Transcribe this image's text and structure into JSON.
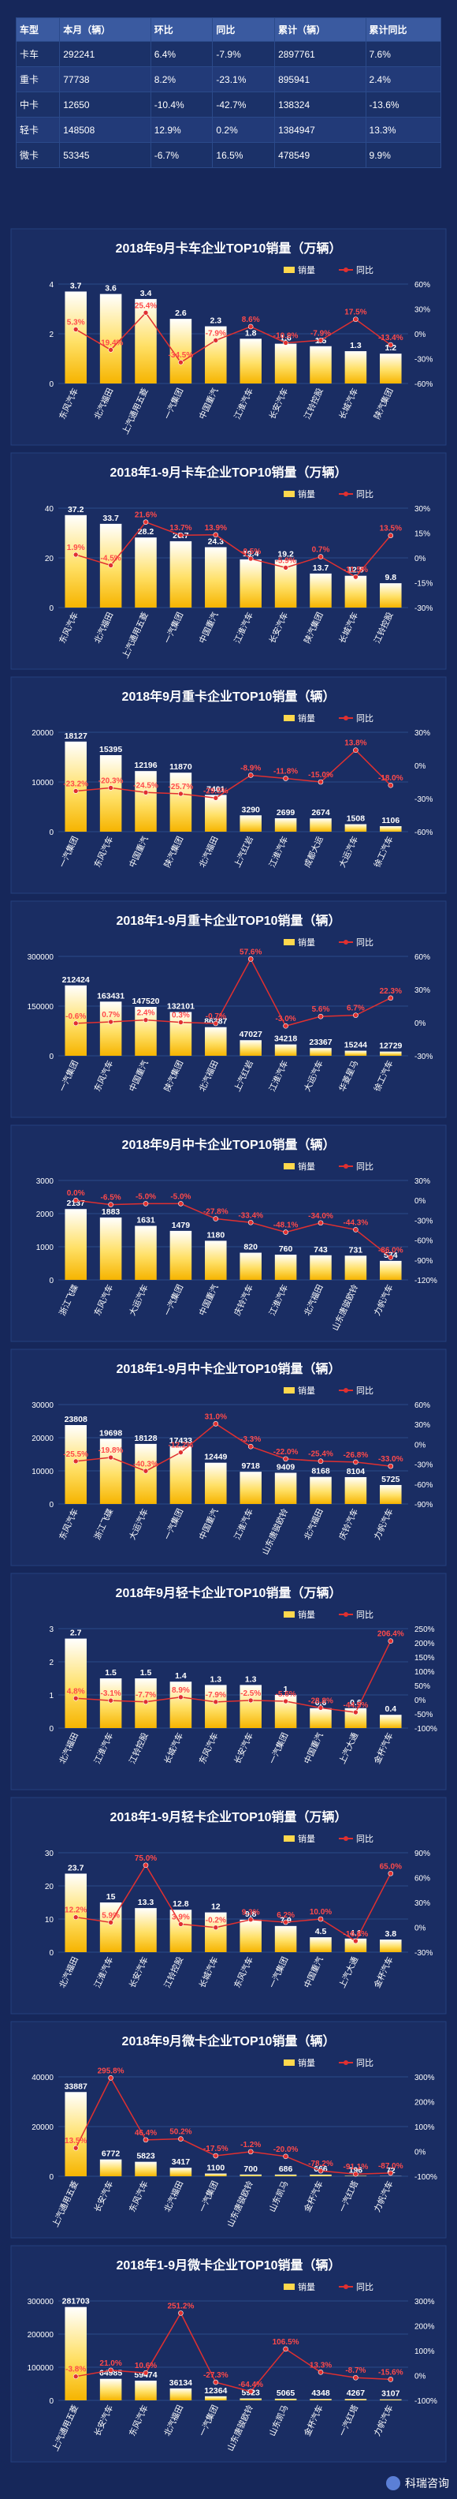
{
  "summary": {
    "headers": [
      "车型",
      "本月（辆）",
      "环比",
      "同比",
      "累计（辆）",
      "累计同比"
    ],
    "rows": [
      [
        "卡车",
        "292241",
        "6.4%",
        "-7.9%",
        "2897761",
        "7.6%"
      ],
      [
        "重卡",
        "77738",
        "8.2%",
        "-23.1%",
        "895941",
        "2.4%"
      ],
      [
        "中卡",
        "12650",
        "-10.4%",
        "-42.7%",
        "138324",
        "-13.6%"
      ],
      [
        "轻卡",
        "148508",
        "12.9%",
        "0.2%",
        "1384947",
        "13.3%"
      ],
      [
        "微卡",
        "53345",
        "-6.7%",
        "16.5%",
        "478549",
        "9.9%"
      ]
    ]
  },
  "brand": {
    "name": "科瑞咨询"
  },
  "chart_data": [
    {
      "type": "bar",
      "title": "2018年9月卡车企业TOP10销量（万辆）",
      "legend": [
        "销量",
        "同比"
      ],
      "categories": [
        "东风汽车",
        "北汽福田",
        "上汽通用五菱",
        "一汽集团",
        "中国重汽",
        "江淮汽车",
        "长安汽车",
        "江铃控股",
        "长城汽车",
        "陕汽集团"
      ],
      "values": [
        3.7,
        3.6,
        3.4,
        2.6,
        2.3,
        1.8,
        1.6,
        1.5,
        1.3,
        1.2
      ],
      "yoy": [
        5.3,
        -19.4,
        25.4,
        -34.5,
        -7.9,
        8.6,
        -10.9,
        -7.9,
        17.5,
        -13.4
      ],
      "ylim": [
        0,
        4
      ],
      "yticks": [
        0,
        2,
        4
      ],
      "y2lim": [
        -60,
        60
      ],
      "y2ticks": [
        60,
        30,
        0,
        -30,
        -60
      ]
    },
    {
      "type": "bar",
      "title": "2018年1-9月卡车企业TOP10销量（万辆）",
      "legend": [
        "销量",
        "同比"
      ],
      "categories": [
        "东风汽车",
        "北汽福田",
        "上汽通用五菱",
        "一汽集团",
        "中国重汽",
        "江淮汽车",
        "长安汽车",
        "陕汽集团",
        "长城汽车",
        "江铃控股"
      ],
      "values": [
        37.2,
        33.7,
        28.2,
        26.7,
        24.3,
        19.4,
        19.2,
        13.7,
        12.8,
        9.8
      ],
      "yoy": [
        1.9,
        -4.5,
        21.6,
        13.7,
        13.9,
        -0.5,
        -5.9,
        0.7,
        -11.5,
        13.5
      ],
      "ylim": [
        0,
        40
      ],
      "yticks": [
        0,
        20,
        40
      ],
      "y2lim": [
        -30,
        30
      ],
      "y2ticks": [
        30,
        15,
        0,
        -15,
        -30
      ]
    },
    {
      "type": "bar",
      "title": "2018年9月重卡企业TOP10销量（辆）",
      "legend": [
        "销量",
        "同比"
      ],
      "categories": [
        "一汽集团",
        "东风汽车",
        "中国重汽",
        "陕汽集团",
        "北汽福田",
        "上汽红岩",
        "江淮汽车",
        "成都大运",
        "大运汽车",
        "徐工汽车"
      ],
      "values": [
        18127,
        15395,
        12196,
        11870,
        7401,
        3290,
        2699,
        2674,
        1508,
        1106
      ],
      "yoy": [
        -23.2,
        -20.3,
        -24.5,
        -25.7,
        -29.5,
        -8.9,
        -11.8,
        -15.0,
        13.8,
        -18.0
      ],
      "ylim": [
        0,
        20000
      ],
      "yticks": [
        0,
        10000,
        20000
      ],
      "y2lim": [
        -60,
        30
      ],
      "y2ticks": [
        30,
        0,
        -30,
        -60
      ]
    },
    {
      "type": "bar",
      "title": "2018年1-9月重卡企业TOP10销量（辆）",
      "legend": [
        "销量",
        "同比"
      ],
      "categories": [
        "一汽集团",
        "东风汽车",
        "中国重汽",
        "陕汽集团",
        "北汽福田",
        "上汽红岩",
        "江淮汽车",
        "大运汽车",
        "华菱星马",
        "徐工汽车"
      ],
      "values": [
        212424,
        163431,
        147520,
        132101,
        86387,
        47027,
        34218,
        23367,
        15244,
        12729
      ],
      "yoy": [
        -0.6,
        0.7,
        2.4,
        0.3,
        -0.7,
        57.6,
        -3.0,
        5.6,
        6.7,
        22.3
      ],
      "ylim": [
        0,
        300000
      ],
      "yticks": [
        0,
        150000,
        300000
      ],
      "y2lim": [
        -30,
        60
      ],
      "y2ticks": [
        60,
        30,
        0,
        -30
      ]
    },
    {
      "type": "bar",
      "title": "2018年9月中卡企业TOP10销量（辆）",
      "legend": [
        "销量",
        "同比"
      ],
      "categories": [
        "浙江飞碟",
        "东风汽车",
        "大运汽车",
        "一汽集团",
        "中国重汽",
        "庆铃汽车",
        "江淮汽车",
        "北汽福田",
        "山东唐骏欧铃",
        "力帆汽车"
      ],
      "values": [
        2137,
        1883,
        1631,
        1479,
        1180,
        820,
        760,
        743,
        731,
        574
      ],
      "yoy": [
        0.0,
        -6.5,
        -5.0,
        -5.0,
        -27.8,
        -33.4,
        -48.1,
        -34.0,
        -44.3,
        -86.0
      ],
      "ylim": [
        0,
        3000
      ],
      "yticks": [
        0,
        1000,
        2000,
        3000
      ],
      "y2lim": [
        -120,
        30
      ],
      "y2ticks": [
        30,
        0,
        -30,
        -60,
        -90,
        -120
      ]
    },
    {
      "type": "bar",
      "title": "2018年1-9月中卡企业TOP10销量（辆）",
      "legend": [
        "销量",
        "同比"
      ],
      "categories": [
        "东风汽车",
        "浙江飞碟",
        "大运汽车",
        "一汽集团",
        "中国重汽",
        "江淮汽车",
        "山东唐骏欧铃",
        "北汽福田",
        "庆铃汽车",
        "力帆汽车"
      ],
      "values": [
        23808,
        19698,
        18128,
        17433,
        12449,
        9718,
        9409,
        8168,
        8104,
        5725
      ],
      "yoy": [
        -25.5,
        -19.8,
        -40.3,
        -12.2,
        31.0,
        -3.3,
        -22.0,
        -25.4,
        -26.8,
        -33.0
      ],
      "ylim": [
        0,
        30000
      ],
      "yticks": [
        0,
        10000,
        20000,
        30000
      ],
      "y2lim": [
        -90,
        60
      ],
      "y2ticks": [
        60,
        30,
        0,
        -30,
        -60,
        -90
      ]
    },
    {
      "type": "bar",
      "title": "2018年9月轻卡企业TOP10销量（万辆）",
      "legend": [
        "销量",
        "同比"
      ],
      "categories": [
        "北汽福田",
        "江淮汽车",
        "江铃控股",
        "长城汽车",
        "东风汽车",
        "长安汽车",
        "一汽集团",
        "中国重汽",
        "上汽大通",
        "金杯汽车"
      ],
      "values": [
        2.7,
        1.5,
        1.5,
        1.4,
        1.3,
        1.3,
        1.0,
        0.6,
        0.6,
        0.4
      ],
      "yoy": [
        4.8,
        -3.1,
        -7.7,
        8.9,
        -7.9,
        -2.5,
        -5.6,
        -28.8,
        -44.5,
        206.4
      ],
      "ylim": [
        0,
        3
      ],
      "yticks": [
        0,
        1,
        2,
        3
      ],
      "y2lim": [
        -100,
        250
      ],
      "y2ticks": [
        250,
        200,
        150,
        100,
        50,
        0,
        -50,
        -100
      ]
    },
    {
      "type": "bar",
      "title": "2018年1-9月轻卡企业TOP10销量（万辆）",
      "legend": [
        "销量",
        "同比"
      ],
      "categories": [
        "北汽福田",
        "江淮汽车",
        "长安汽车",
        "江铃控股",
        "长城汽车",
        "东风汽车",
        "一汽集团",
        "中国重汽",
        "上汽大通",
        "金杯汽车"
      ],
      "values": [
        23.7,
        15.0,
        13.3,
        12.8,
        12.0,
        9.8,
        7.9,
        4.5,
        4.1,
        3.8
      ],
      "yoy": [
        12.2,
        5.9,
        75.0,
        3.9,
        -0.2,
        9.3,
        6.2,
        10.0,
        -16.6,
        65.0
      ],
      "ylim": [
        0,
        30
      ],
      "yticks": [
        0,
        10,
        20,
        30
      ],
      "y2lim": [
        -30,
        90
      ],
      "y2ticks": [
        90,
        60,
        30,
        0,
        -30
      ]
    },
    {
      "type": "bar",
      "title": "2018年9月微卡企业TOP10销量（辆）",
      "legend": [
        "销量",
        "同比"
      ],
      "categories": [
        "上汽通用五菱",
        "长安汽车",
        "东风汽车",
        "北汽福田",
        "一汽集团",
        "山东唐骏欧铃",
        "山东凯马",
        "金杯汽车",
        "一汽红塔",
        "力帆汽车"
      ],
      "values": [
        33887,
        6772,
        5823,
        3417,
        1100,
        700,
        686,
        666,
        196,
        72
      ],
      "yoy": [
        13.5,
        295.8,
        46.4,
        50.2,
        -17.5,
        -1.2,
        -20.0,
        -78.2,
        -91.1,
        -87.0
      ],
      "ylim": [
        0,
        40000
      ],
      "yticks": [
        0,
        20000,
        40000
      ],
      "y2lim": [
        -100,
        300
      ],
      "y2ticks": [
        300,
        200,
        100,
        0,
        -100
      ]
    },
    {
      "type": "bar",
      "title": "2018年1-9月微卡企业TOP10销量（辆）",
      "legend": [
        "销量",
        "同比"
      ],
      "categories": [
        "上汽通用五菱",
        "长安汽车",
        "东风汽车",
        "北汽福田",
        "一汽集团",
        "山东唐骏欧铃",
        "山东凯马",
        "金杯汽车",
        "一汽红塔",
        "力帆汽车"
      ],
      "values": [
        281703,
        64985,
        59474,
        36134,
        12364,
        5923,
        5065,
        4348,
        4267,
        3107
      ],
      "yoy": [
        -3.8,
        21.0,
        10.6,
        251.2,
        -27.3,
        -64.4,
        106.5,
        13.3,
        -8.7,
        -15.6
      ],
      "ylim": [
        0,
        300000
      ],
      "yticks": [
        0,
        100000,
        200000,
        300000
      ],
      "y2lim": [
        -100,
        300
      ],
      "y2ticks": [
        300,
        200,
        100,
        0,
        -100
      ]
    }
  ]
}
